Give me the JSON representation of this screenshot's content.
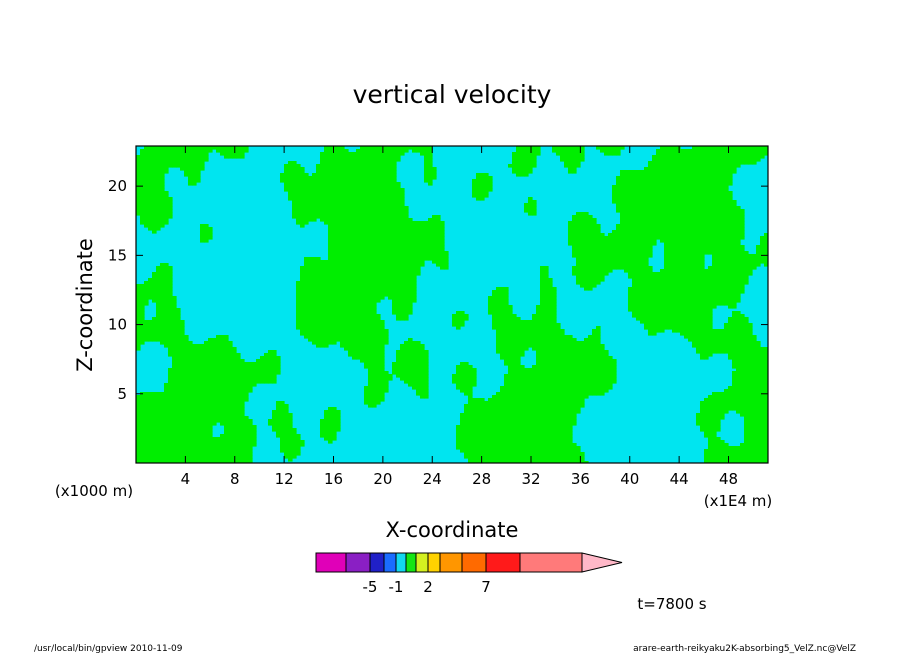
{
  "chart_data": {
    "type": "heatmap",
    "title": "vertical velocity",
    "xlabel": "X-coordinate",
    "ylabel": "Z-coordinate",
    "x_units": "(x1E4 m)",
    "y_units": "(x1000 m)",
    "x_ticks": [
      4,
      8,
      12,
      16,
      20,
      24,
      28,
      32,
      36,
      40,
      44,
      48
    ],
    "y_ticks": [
      5,
      10,
      15,
      20
    ],
    "xlim": [
      0,
      51.2
    ],
    "ylim": [
      0,
      22.9
    ],
    "time_label": "t=7800 s",
    "colorbar": {
      "tick_labels": [
        "-5",
        "-1",
        "2",
        "7"
      ],
      "colors": [
        "#e000b8",
        "#8a1fc4",
        "#2020c8",
        "#1a6cff",
        "#12d8f0",
        "#14e614",
        "#d4f020",
        "#ffd200",
        "#ff9600",
        "#ff6a00",
        "#ff1a1a",
        "#ff7a7a",
        "#ffb8c8"
      ]
    },
    "visible_field_colors": [
      "#00e5f0",
      "#00ee00"
    ],
    "grid": false,
    "legend": "colorbar-bottom"
  },
  "footer": {
    "left": "/usr/local/bin/gpview   2010-11-09",
    "right": "arare-earth-reikyaku2K-absorbing5_VelZ.nc@VelZ"
  }
}
